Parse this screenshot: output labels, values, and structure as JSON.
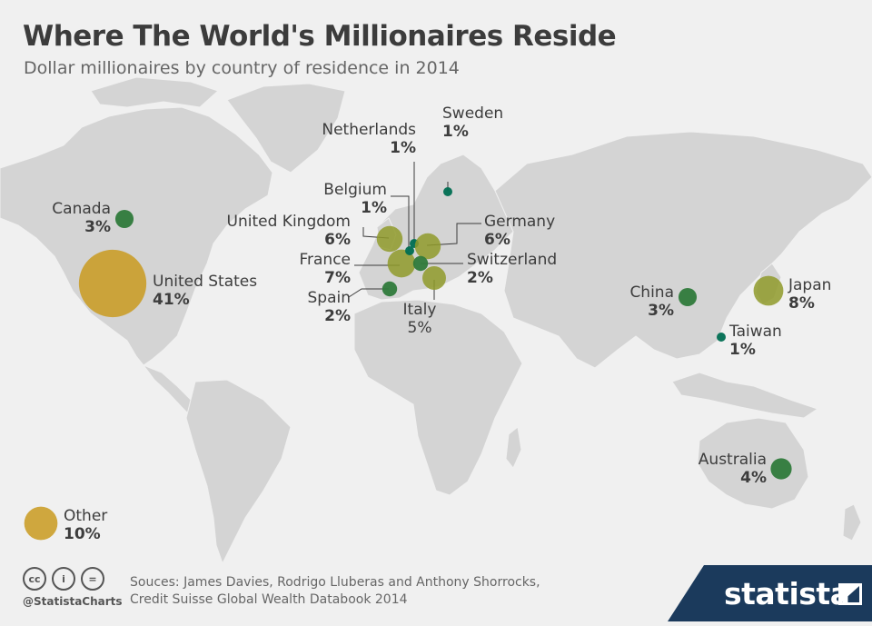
{
  "header": {
    "title": "Where The World's Millionaires Reside",
    "subtitle": "Dollar millionaires by country of residence in 2014"
  },
  "colors": {
    "background": "#f0f0f0",
    "land": "#d4d4d4",
    "bubble_large": "#c99a1f",
    "bubble_medium": "#8f9a2a",
    "bubble_small": "#2f7a3b",
    "bubble_tiny": "#006e52",
    "brand": "#1b3a5c"
  },
  "countries": [
    {
      "key": "united_states",
      "name": "United States",
      "share": "41%",
      "value": 41
    },
    {
      "key": "canada",
      "name": "Canada",
      "share": "3%",
      "value": 3
    },
    {
      "key": "united_kingdom",
      "name": "United Kingdom",
      "share": "6%",
      "value": 6
    },
    {
      "key": "france",
      "name": "France",
      "share": "7%",
      "value": 7
    },
    {
      "key": "spain",
      "name": "Spain",
      "share": "2%",
      "value": 2
    },
    {
      "key": "belgium",
      "name": "Belgium",
      "share": "1%",
      "value": 1
    },
    {
      "key": "netherlands",
      "name": "Netherlands",
      "share": "1%",
      "value": 1
    },
    {
      "key": "sweden",
      "name": "Sweden",
      "share": "1%",
      "value": 1
    },
    {
      "key": "germany",
      "name": "Germany",
      "share": "6%",
      "value": 6
    },
    {
      "key": "switzerland",
      "name": "Switzerland",
      "share": "2%",
      "value": 2
    },
    {
      "key": "italy",
      "name": "Italy",
      "share": "5%",
      "value": 5
    },
    {
      "key": "china",
      "name": "China",
      "share": "3%",
      "value": 3
    },
    {
      "key": "japan",
      "name": "Japan",
      "share": "8%",
      "value": 8
    },
    {
      "key": "taiwan",
      "name": "Taiwan",
      "share": "1%",
      "value": 1
    },
    {
      "key": "australia",
      "name": "Australia",
      "share": "4%",
      "value": 4
    },
    {
      "key": "other",
      "name": "Other",
      "share": "10%",
      "value": 10
    }
  ],
  "footer": {
    "cc_icon": "cc",
    "by_icon": "i",
    "nd_icon": "=",
    "handle": "@StatistaCharts",
    "source_line1": "Souces: James Davies, Rodrigo Lluberas and Anthony Shorrocks,",
    "source_line2": "Credit Suisse Global Wealth Databook 2014",
    "brand": "statista"
  }
}
